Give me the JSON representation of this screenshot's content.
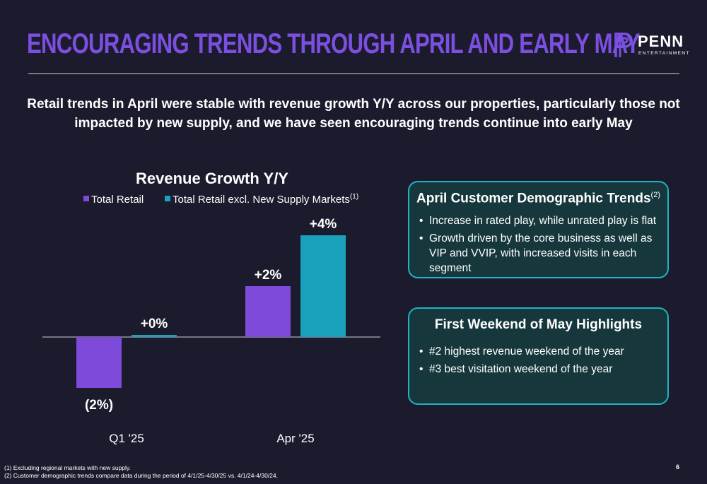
{
  "header": {
    "title": "ENCOURAGING TRENDS THROUGH APRIL AND EARLY MAY",
    "logo_name": "PENN",
    "logo_sub": "ENTERTAINMENT"
  },
  "subtitle": "Retail trends in April were stable with revenue growth Y/Y across our properties, particularly those not impacted by new supply, and we have seen encouraging trends continue into early May",
  "colors": {
    "title": "#7b4fe0",
    "series_total": "#7d4ad9",
    "series_excl": "#1aa2bd",
    "panel_border": "#1fb3c4",
    "panel_fill": "#16383d",
    "background": "#1c1b2e"
  },
  "chart_data": {
    "type": "bar",
    "title": "Revenue Growth Y/Y",
    "categories": [
      "Q1 '25",
      "Apr '25"
    ],
    "series": [
      {
        "name": "Total Retail",
        "values": [
          -2,
          2
        ],
        "labels": [
          "(2%)",
          "+2%"
        ]
      },
      {
        "name": "Total Retail excl. New Supply Markets",
        "name_sup": "(1)",
        "values": [
          0,
          4
        ],
        "labels": [
          "+0%",
          "+4%"
        ]
      }
    ],
    "ylim": [
      -2,
      4
    ],
    "grid": false,
    "legend": "top"
  },
  "panels": {
    "demographics": {
      "title": "April Customer Demographic Trends",
      "title_sup": "(2)",
      "bullets": [
        "Increase in rated play, while unrated play is flat",
        "Growth driven by the core business as well as VIP and VVIP, with increased visits in each segment"
      ]
    },
    "weekend": {
      "title": "First Weekend of May Highlights",
      "bullets": [
        "#2 highest revenue weekend of the year",
        "#3 best visitation weekend of the year"
      ]
    }
  },
  "footnotes": [
    "(1) Excluding regional markets with new supply.",
    "(2) Customer demographic trends compare data during the period of 4/1/25-4/30/25 vs. 4/1/24-4/30/24."
  ],
  "page_number": "6"
}
